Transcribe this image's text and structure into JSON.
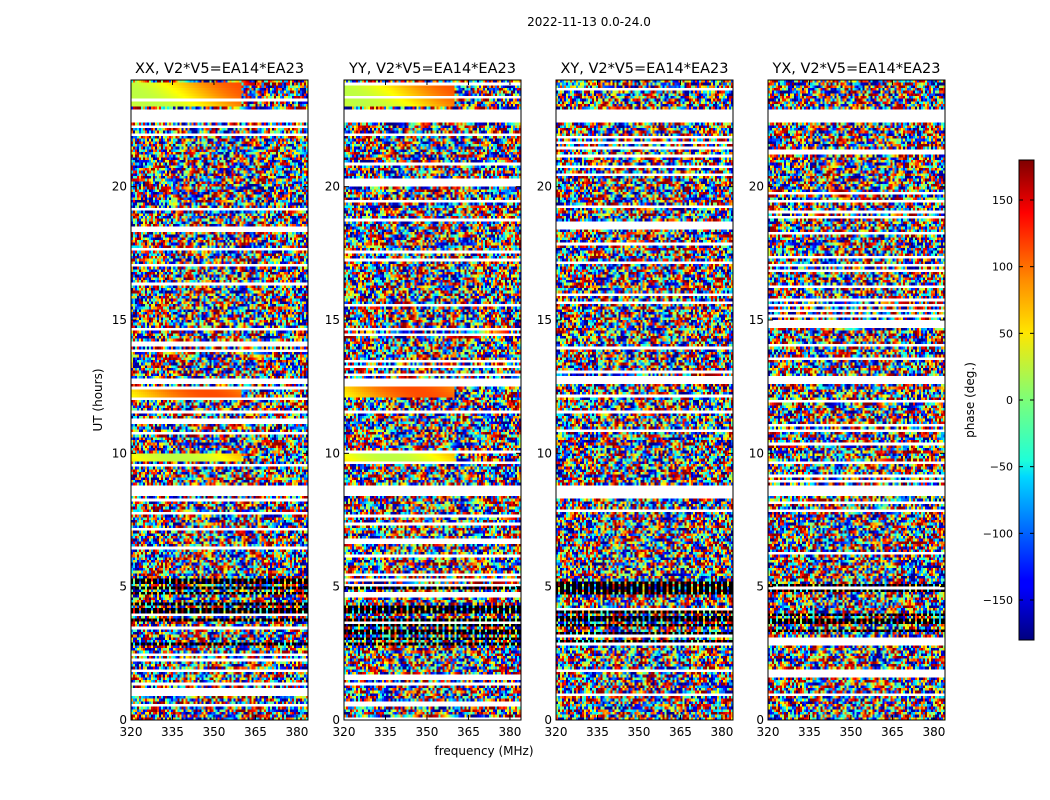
{
  "chart_data": {
    "type": "heatmap",
    "suptitle": "2022-11-13 0.0-24.0",
    "panels": [
      {
        "title": "XX, V2*V5=EA14*EA23",
        "pol": "XX"
      },
      {
        "title": "YY, V2*V5=EA14*EA23",
        "pol": "YY"
      },
      {
        "title": "XY, V2*V5=EA14*EA23",
        "pol": "XY"
      },
      {
        "title": "YX, V2*V5=EA14*EA23",
        "pol": "YX"
      }
    ],
    "xlabel": "frequency (MHz)",
    "ylabel": "UT (hours)",
    "xlim": [
      320,
      384
    ],
    "ylim": [
      0,
      24
    ],
    "xticks": [
      320,
      335,
      350,
      365,
      380
    ],
    "yticks": [
      0,
      5,
      10,
      15,
      20
    ],
    "colorbar": {
      "label": "phase (deg.)",
      "range": [
        -180,
        180
      ],
      "ticks": [
        150,
        100,
        50,
        0,
        -50,
        -100,
        -150
      ],
      "tick_labels": [
        "150",
        "100",
        "50",
        "0",
        "−50",
        "−100",
        "−150"
      ],
      "colormap": "jet"
    },
    "value_description": "visibility phase in degrees versus frequency and UT; mostly noise-like phase with horizontal flagged (blank) time ranges"
  }
}
